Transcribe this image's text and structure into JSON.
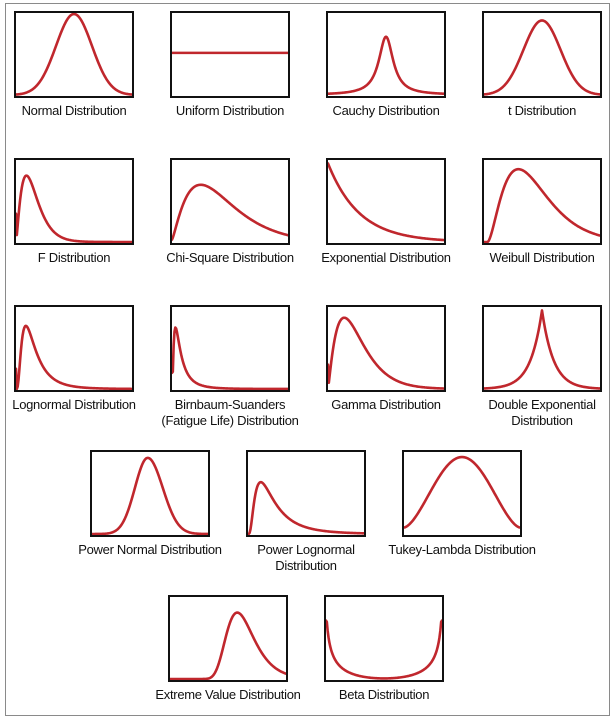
{
  "accent_color": "#c0272d",
  "distributions": [
    {
      "name": "normal",
      "label_lines": [
        "Normal Distribution"
      ]
    },
    {
      "name": "uniform",
      "label_lines": [
        "Uniform Distribution"
      ]
    },
    {
      "name": "cauchy",
      "label_lines": [
        "Cauchy Distribution"
      ]
    },
    {
      "name": "t",
      "label_lines": [
        "t Distribution"
      ]
    },
    {
      "name": "f",
      "label_lines": [
        "F Distribution"
      ]
    },
    {
      "name": "chi-square",
      "label_lines": [
        "Chi-Square Distribution"
      ]
    },
    {
      "name": "exponential",
      "label_lines": [
        "Exponential Distribution"
      ]
    },
    {
      "name": "weibull",
      "label_lines": [
        "Weibull Distribution"
      ]
    },
    {
      "name": "lognormal",
      "label_lines": [
        "Lognormal Distribution"
      ]
    },
    {
      "name": "birnbaum-saunders",
      "label_lines": [
        "Birnbaum-Suanders",
        "(Fatigue Life) Distribution"
      ]
    },
    {
      "name": "gamma",
      "label_lines": [
        "Gamma Distribution"
      ]
    },
    {
      "name": "double-exponential",
      "label_lines": [
        "Double Exponential",
        "Distribution"
      ]
    },
    {
      "name": "power-normal",
      "label_lines": [
        "Power Normal Distribution"
      ]
    },
    {
      "name": "power-lognormal",
      "label_lines": [
        "Power Lognormal",
        "Distribution"
      ]
    },
    {
      "name": "tukey-lambda",
      "label_lines": [
        "Tukey-Lambda Distribution"
      ]
    },
    {
      "name": "extreme-value",
      "label_lines": [
        "Extreme Value Distribution"
      ]
    },
    {
      "name": "beta",
      "label_lines": [
        "Beta Distribution"
      ]
    }
  ]
}
